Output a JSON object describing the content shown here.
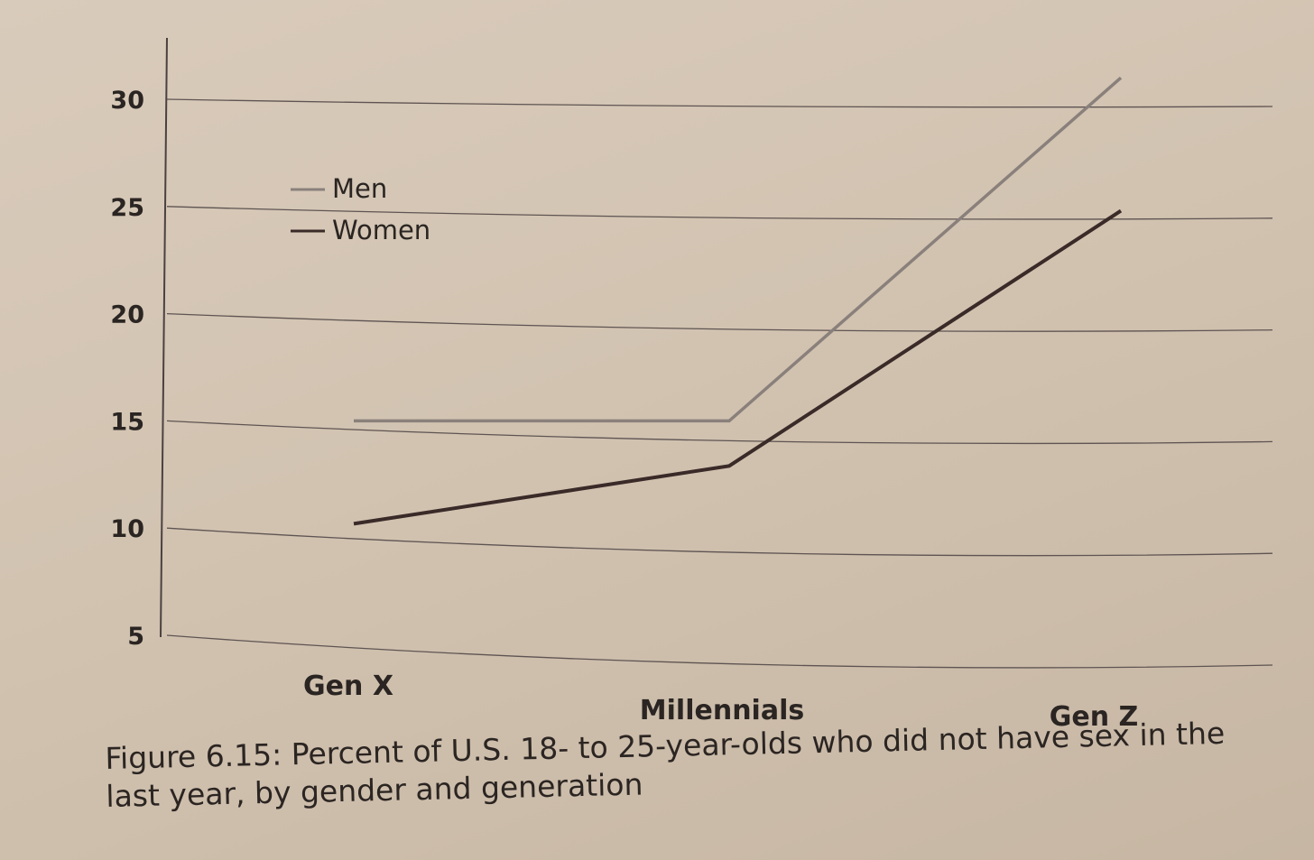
{
  "chart_data": {
    "type": "line",
    "categories": [
      "Gen X",
      "Millennials",
      "Gen Z"
    ],
    "series": [
      {
        "name": "Men",
        "values": [
          15,
          15,
          31
        ],
        "color": "#8a807b"
      },
      {
        "name": "Women",
        "values": [
          10.2,
          12.9,
          24.8
        ],
        "color": "#3a2a28"
      }
    ],
    "yticks": [
      "5",
      "10",
      "15",
      "20",
      "25",
      "30"
    ],
    "ylim": [
      5,
      31
    ],
    "grid": true,
    "legend_position": "top-left",
    "caption": "Figure 6.15: Percent of U.S. 18- to 25-year-olds who did not have sex in the last year, by gender and generation"
  }
}
